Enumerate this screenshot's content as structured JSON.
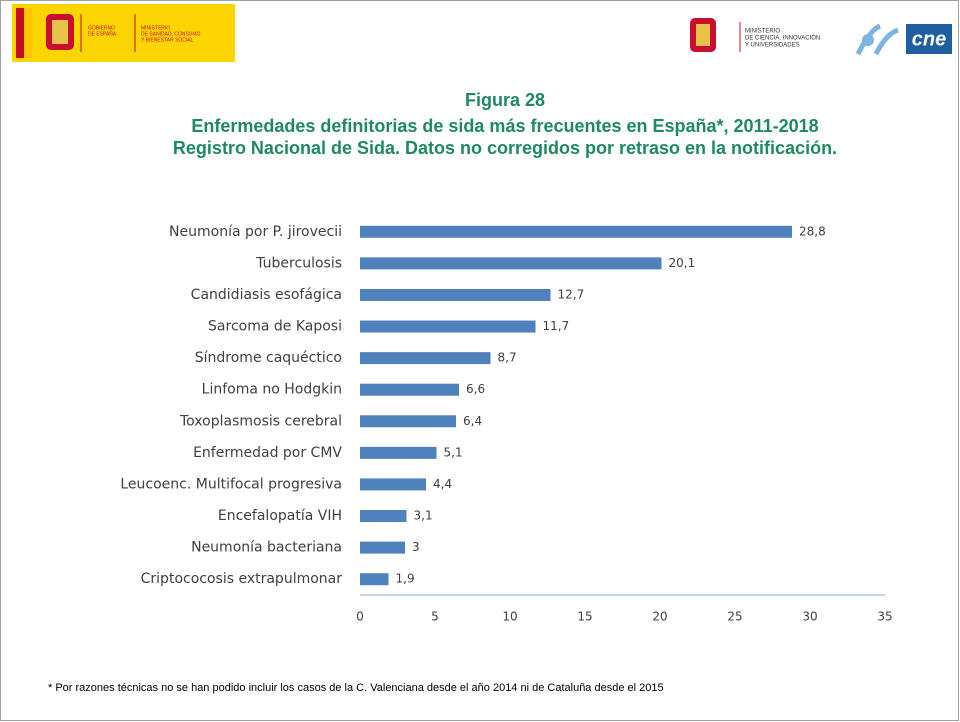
{
  "header": {
    "left_logo": [
      "GOBIERNO",
      "DE ESPAÑA"
    ],
    "left_ministry": [
      "MINISTERIO",
      "DE SANIDAD, CONSUMO",
      "Y BIENESTAR SOCIAL"
    ],
    "right_ministry": [
      "MINISTERIO",
      "DE CIENCIA, INNOVACIÓN",
      "Y UNIVERSIDADES"
    ],
    "right_logo": "cne"
  },
  "chart_data": {
    "type": "bar",
    "orientation": "horizontal",
    "title": "Figura 28",
    "subtitle": [
      "Enfermedades definitorias de sida más frecuentes en España*, 2011-2018",
      "Registro Nacional de Sida. Datos no corregidos por retraso en la notificación."
    ],
    "categories": [
      "Neumonía por P. jirovecii",
      "Tuberculosis",
      "Candidiasis esofágica",
      "Sarcoma de Kaposi",
      "Síndrome caquéctico",
      "Linfoma no Hodgkin",
      "Toxoplasmosis cerebral",
      "Enfermedad por CMV",
      "Leucoenc. Multifocal progresiva",
      "Encefalopatía VIH",
      "Neumonía bacteriana",
      "Criptococosis extrapulmonar"
    ],
    "values": [
      28.8,
      20.1,
      12.7,
      11.7,
      8.7,
      6.6,
      6.4,
      5.1,
      4.4,
      3.1,
      3,
      1.9
    ],
    "value_labels": [
      "28,8",
      "20,1",
      "12,7",
      "11,7",
      "8,7",
      "6,6",
      "6,4",
      "5,1",
      "4,4",
      "3,1",
      "3",
      "1,9"
    ],
    "color": "#4f81bd",
    "xlim": [
      0,
      35
    ],
    "xticks": [
      0,
      5,
      10,
      15,
      20,
      25,
      30,
      35
    ],
    "grid": false,
    "footnote": "* Por razones técnicas no se han podido incluir los casos de la C. Valenciana desde el año 2014 ni de Cataluña desde el 2015"
  }
}
